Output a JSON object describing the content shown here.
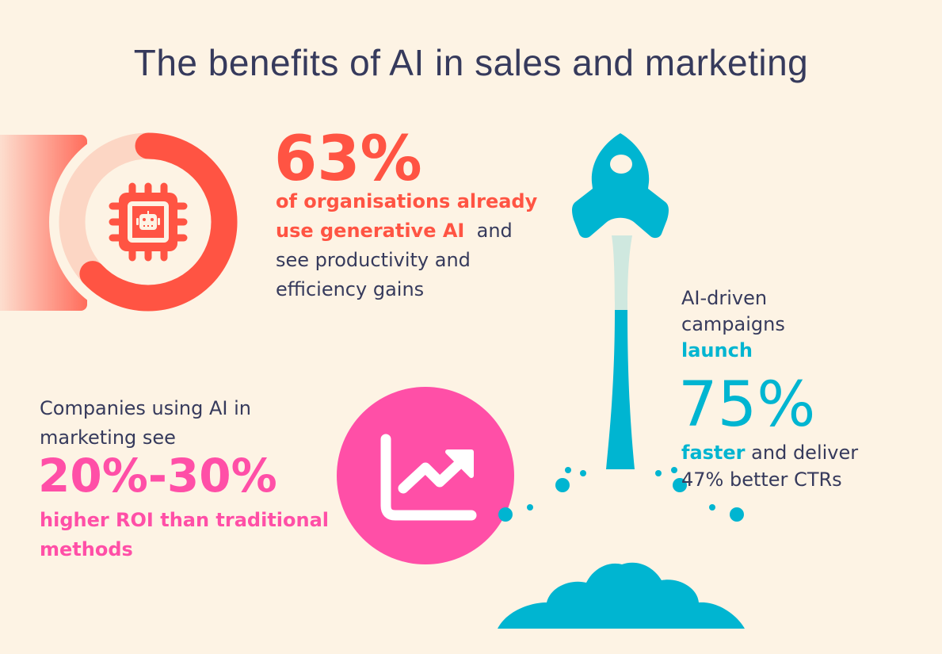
{
  "title": "The benefits of AI in sales and marketing",
  "colors": {
    "background": "#fdf3e4",
    "text": "#363a5c",
    "red": "#ff5443",
    "pink": "#ff4fa7",
    "teal": "#00b5d1"
  },
  "stat1": {
    "value": "63%",
    "line1": "of organisations already",
    "line2_highlight": "use generative AI",
    "line2_rest": "and",
    "line3": "see productivity and",
    "line4": "efficiency gains",
    "ring_fill_percent": 63,
    "icon": "ai-chip-robot-icon"
  },
  "stat2": {
    "line1": "Companies using AI in",
    "line2": "marketing see",
    "value": "20%-30%",
    "line3": "higher ROI than traditional",
    "line4": "methods",
    "icon": "trend-chart-up-icon"
  },
  "stat3": {
    "line1": "AI-driven",
    "line2": "campaigns",
    "line3": "launch",
    "value": "75%",
    "line4_highlight": "faster",
    "line4_rest": "and deliver",
    "line5": "47% better CTRs",
    "icon": "rocket-icon"
  }
}
